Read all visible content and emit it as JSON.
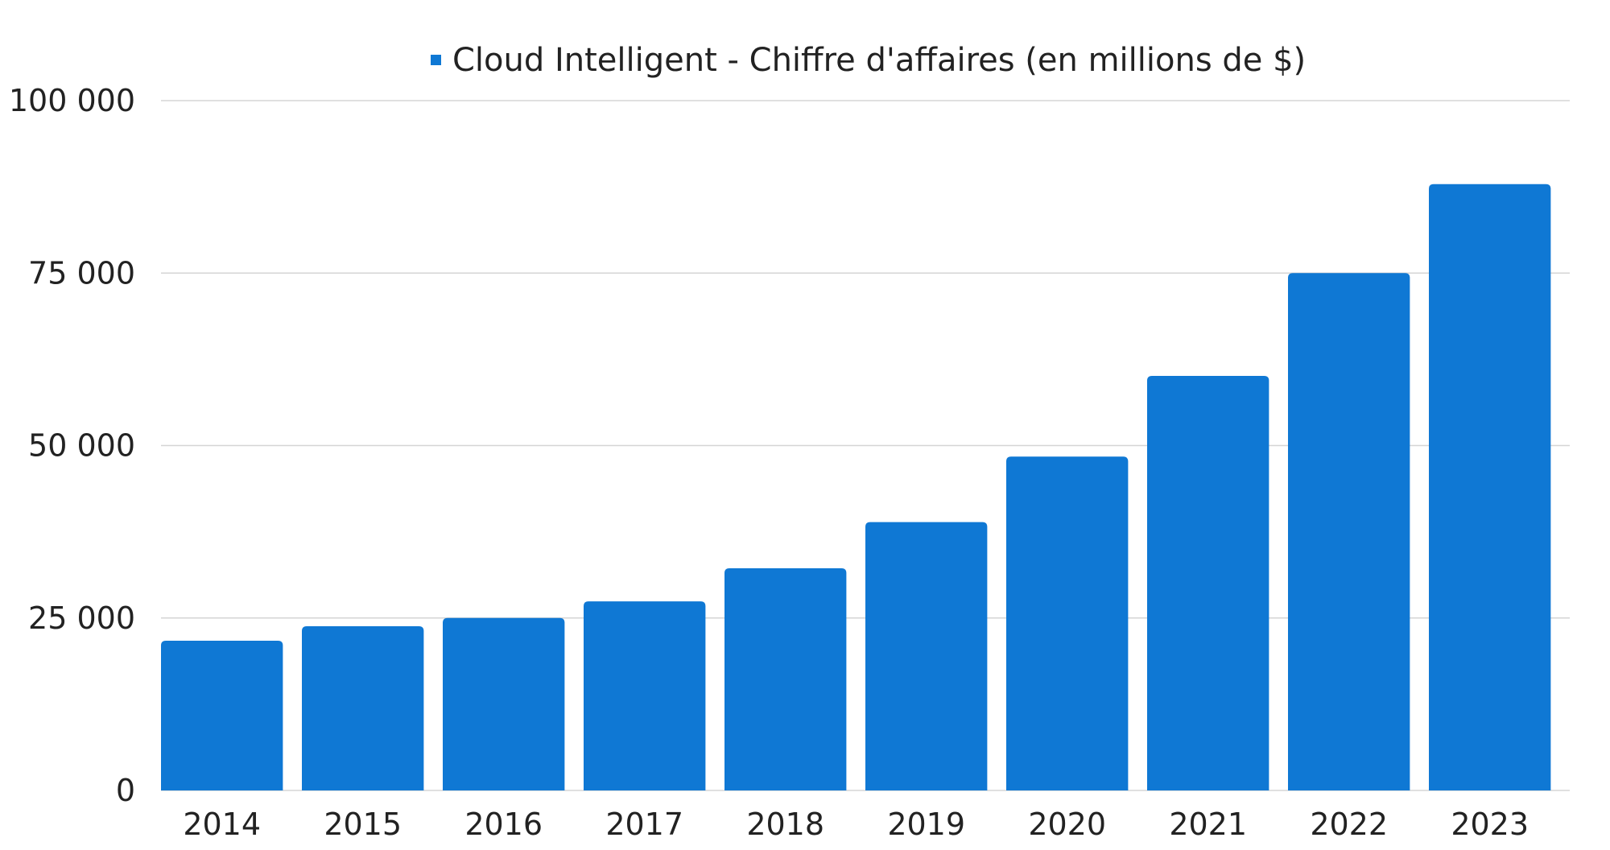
{
  "chart_data": {
    "type": "bar",
    "categories": [
      "2014",
      "2015",
      "2016",
      "2017",
      "2018",
      "2019",
      "2020",
      "2021",
      "2022",
      "2023"
    ],
    "series": [
      {
        "name": "Cloud Intelligent - Chiffre d'affaires (en millions de $)",
        "values": [
          21700,
          23800,
          25000,
          27400,
          32200,
          38900,
          48400,
          60100,
          75000,
          87900
        ],
        "color": "#0f78d4"
      }
    ],
    "ylim": [
      0,
      100000
    ],
    "yticks": [
      0,
      25000,
      50000,
      75000,
      100000
    ],
    "ytick_labels": [
      "0",
      "25 000",
      "50 000",
      "75 000",
      "100 000"
    ],
    "xlabel": "",
    "ylabel": "",
    "grid": true,
    "legend_position": "top-center"
  }
}
